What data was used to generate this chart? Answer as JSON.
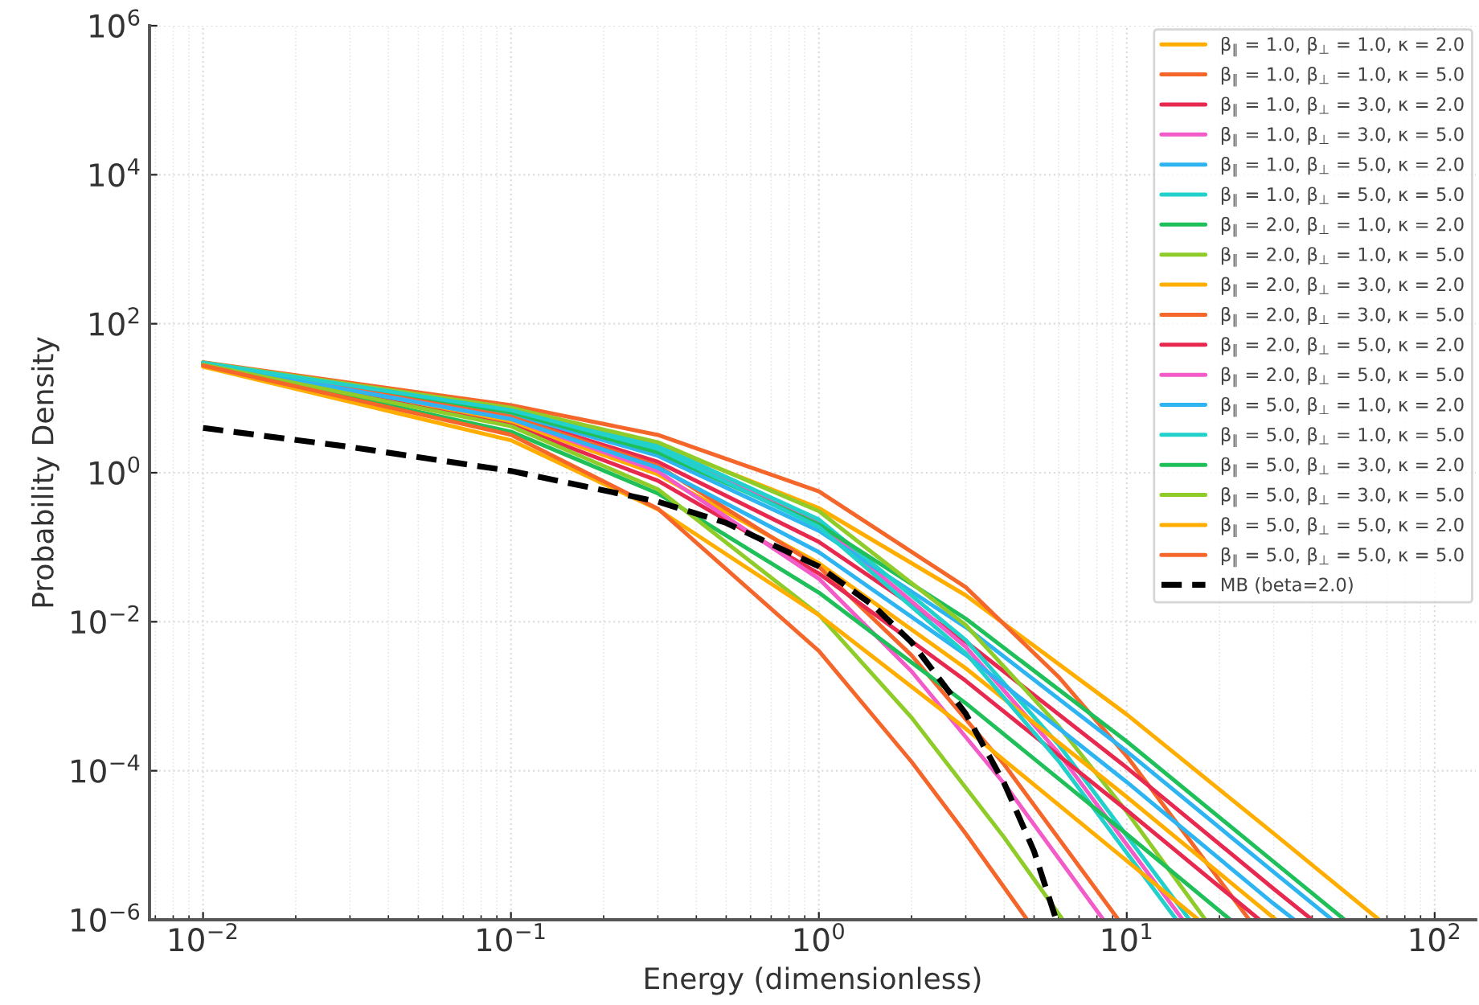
{
  "chart_data": {
    "type": "line",
    "xlabel": "Energy (dimensionless)",
    "ylabel": "Probability Density",
    "log": "xy",
    "grid": true,
    "legend": "top right",
    "line_style": "solid",
    "xlim": [
      0.0067,
      136
    ],
    "ylim": [
      1e-06,
      1000000
    ],
    "xticks": [
      {
        "value": 0.01,
        "label": "10$^{−2}$"
      },
      {
        "value": 0.1,
        "label": "10$^{−1}$"
      },
      {
        "value": 1,
        "label": "10$^{0}$"
      },
      {
        "value": 10,
        "label": "10$^{1}$"
      },
      {
        "value": 100,
        "label": "10$^{2}$"
      }
    ],
    "yticks": [
      {
        "value": 1e-06,
        "label": "10$^{−6}$"
      },
      {
        "value": 0.0001,
        "label": "10$^{−4}$"
      },
      {
        "value": 0.01,
        "label": "10$^{−2}$"
      },
      {
        "value": 1,
        "label": "10$^{0}$"
      },
      {
        "value": 100,
        "label": "10$^{2}$"
      },
      {
        "value": 10000,
        "label": "10$^{4}$"
      },
      {
        "value": 1000000,
        "label": "10$^{6}$"
      }
    ],
    "series": [
      {
        "name": "β$_{∥}$ = 1.0, β$_{⊥}$ = 1.0, κ = 2.0",
        "color": "#ffae00",
        "x": [
          0.01,
          0.1,
          0.3,
          1,
          3,
          10,
          30,
          66
        ],
        "values": [
          30.0,
          7.16,
          2.41,
          0.335,
          0.0226,
          0.00057,
          1.44e-05,
          1e-06
        ]
      },
      {
        "name": "β$_{∥}$ = 1.0, β$_{⊥}$ = 1.0, κ = 5.0",
        "color": "#f4662a",
        "x": [
          0.01,
          0.1,
          0.3,
          1,
          3,
          6,
          10,
          25
        ],
        "values": [
          30.4,
          8.07,
          3.22,
          0.563,
          0.0291,
          0.00183,
          0.000157,
          1e-06
        ]
      },
      {
        "name": "β$_{∥}$ = 1.0, β$_{⊥}$ = 3.0, κ = 2.0",
        "color": "#e8294f",
        "x": [
          0.01,
          0.1,
          0.3,
          1,
          3,
          10,
          30,
          40
        ],
        "values": [
          29.2,
          5.71,
          1.4,
          0.118,
          0.00541,
          0.00011,
          2.6e-06,
          1e-06
        ]
      },
      {
        "name": "β$_{∥}$ = 1.0, β$_{⊥}$ = 3.0, κ = 5.0",
        "color": "#f25bc8",
        "x": [
          0.01,
          0.1,
          0.3,
          1,
          3,
          6,
          15.2
        ],
        "values": [
          30.0,
          7.04,
          2.2,
          0.209,
          0.0046,
          0.000174,
          1e-06
        ]
      },
      {
        "name": "β$_{∥}$ = 1.0, β$_{⊥}$ = 5.0, κ = 2.0",
        "color": "#2eb4f0",
        "x": [
          0.01,
          0.1,
          0.3,
          1,
          3,
          10,
          30,
          46.5
        ],
        "values": [
          29.5,
          6.19,
          1.69,
          0.166,
          0.00846,
          0.000182,
          4.37e-06,
          1e-06
        ]
      },
      {
        "name": "β$_{∥}$ = 1.0, β$_{⊥}$ = 5.0, κ = 5.0",
        "color": "#22d0cc",
        "x": [
          0.01,
          0.1,
          0.3,
          1,
          3,
          6,
          16
        ],
        "values": [
          30.0,
          7.16,
          2.31,
          0.236,
          0.00568,
          0.000225,
          1e-06
        ]
      },
      {
        "name": "β$_{∥}$ = 2.0, β$_{⊥}$ = 1.0, κ = 2.0",
        "color": "#1fbf5a",
        "x": [
          0.01,
          0.1,
          0.3,
          1,
          3,
          10,
          30,
          51
        ],
        "values": [
          29.7,
          6.47,
          1.88,
          0.202,
          0.011,
          0.000247,
          6e-06,
          1e-06
        ]
      },
      {
        "name": "β$_{∥}$ = 2.0, β$_{⊥}$ = 1.0, κ = 5.0",
        "color": "#8fcc2a",
        "x": [
          0.01,
          0.1,
          0.3,
          1,
          3,
          6,
          10,
          18
        ],
        "values": [
          30.1,
          7.43,
          2.56,
          0.305,
          0.00902,
          0.000401,
          2.81e-05,
          1e-06
        ]
      },
      {
        "name": "β$_{∥}$ = 2.0, β$_{⊥}$ = 3.0, κ = 2.0",
        "color": "#ffae00",
        "x": [
          0.01,
          0.1,
          0.3,
          1,
          3,
          10,
          30.5
        ],
        "values": [
          28.6,
          4.79,
          0.953,
          0.061,
          0.00237,
          4.45e-05,
          1e-06
        ]
      },
      {
        "name": "β$_{∥}$ = 2.0, β$_{⊥}$ = 3.0, κ = 5.0",
        "color": "#f4662a",
        "x": [
          0.01,
          0.1,
          0.3,
          1,
          2,
          4,
          9.4
        ],
        "values": [
          29.3,
          5.65,
          1.24,
          0.0547,
          0.00354,
          0.000121,
          1e-06
        ]
      },
      {
        "name": "β$_{∥}$ = 2.0, β$_{⊥}$ = 5.0, κ = 2.0",
        "color": "#e8294f",
        "x": [
          0.01,
          0.1,
          0.3,
          1,
          3,
          10,
          27
        ],
        "values": [
          28.3,
          4.34,
          0.782,
          0.0445,
          0.00161,
          2.95e-05,
          1e-06
        ]
      },
      {
        "name": "β$_{∥}$ = 2.0, β$_{⊥}$ = 5.0, κ = 5.0",
        "color": "#f25bc8",
        "x": [
          0.01,
          0.1,
          0.3,
          1,
          2,
          4,
          8.4
        ],
        "values": [
          29.1,
          5.28,
          1.044,
          0.0378,
          0.00216,
          6.7e-05,
          1e-06
        ]
      },
      {
        "name": "β$_{∥}$ = 5.0, β$_{⊥}$ = 1.0, κ = 2.0",
        "color": "#2eb4f0",
        "x": [
          0.01,
          0.1,
          0.3,
          1,
          3,
          10,
          30,
          35
        ],
        "values": [
          29.0,
          5.26,
          1.17,
          0.086,
          0.00361,
          7.06e-05,
          1.64e-06,
          1e-06
        ]
      },
      {
        "name": "β$_{∥}$ = 5.0, β$_{⊥}$ = 1.0, κ = 5.0",
        "color": "#22d0cc",
        "x": [
          0.01,
          0.1,
          0.3,
          1,
          3,
          6,
          14.5
        ],
        "values": [
          29.9,
          6.92,
          2.1,
          0.187,
          0.00378,
          0.000136,
          1e-06
        ]
      },
      {
        "name": "β$_{∥}$ = 5.0, β$_{⊥}$ = 3.0, κ = 2.0",
        "color": "#1fbf5a",
        "x": [
          0.01,
          0.1,
          0.3,
          1,
          3,
          10,
          21.7
        ],
        "values": [
          27.5,
          3.56,
          0.528,
          0.0246,
          0.000806,
          1.41e-05,
          1e-06
        ]
      },
      {
        "name": "β$_{∥}$ = 5.0, β$_{⊥}$ = 3.0, κ = 5.0",
        "color": "#8fcc2a",
        "x": [
          0.01,
          0.1,
          0.3,
          1,
          2,
          4,
          6.2
        ],
        "values": [
          28.3,
          4.21,
          0.601,
          0.0124,
          0.000518,
          1.27e-05,
          1e-06
        ]
      },
      {
        "name": "β$_{∥}$ = 5.0, β$_{⊥}$ = 5.0, κ = 2.0",
        "color": "#ffae00",
        "x": [
          0.01,
          0.1,
          0.3,
          1,
          3,
          10,
          17.1
        ],
        "values": [
          26.5,
          2.73,
          0.323,
          0.0123,
          0.000367,
          6.2e-06,
          1e-06
        ]
      },
      {
        "name": "β$_{∥}$ = 5.0, β$_{⊥}$ = 5.0, κ = 5.0",
        "color": "#f4662a",
        "x": [
          0.01,
          0.1,
          0.3,
          1,
          2,
          3,
          4.75
        ],
        "values": [
          27.5,
          3.24,
          0.329,
          0.00405,
          0.000132,
          1.43e-05,
          1e-06
        ]
      },
      {
        "name": "MB (beta=2.0)",
        "color": "#000000",
        "line_style": "dashed",
        "x": [
          0.01,
          0.03,
          0.1,
          0.3,
          0.5,
          1,
          1.5,
          2,
          3,
          4,
          5,
          5.9
        ],
        "values": [
          4.0,
          2.22,
          1.056,
          0.409,
          0.212,
          0.0552,
          0.0166,
          0.00529,
          0.000584,
          6.8e-05,
          8.3e-06,
          1e-06
        ]
      }
    ]
  }
}
